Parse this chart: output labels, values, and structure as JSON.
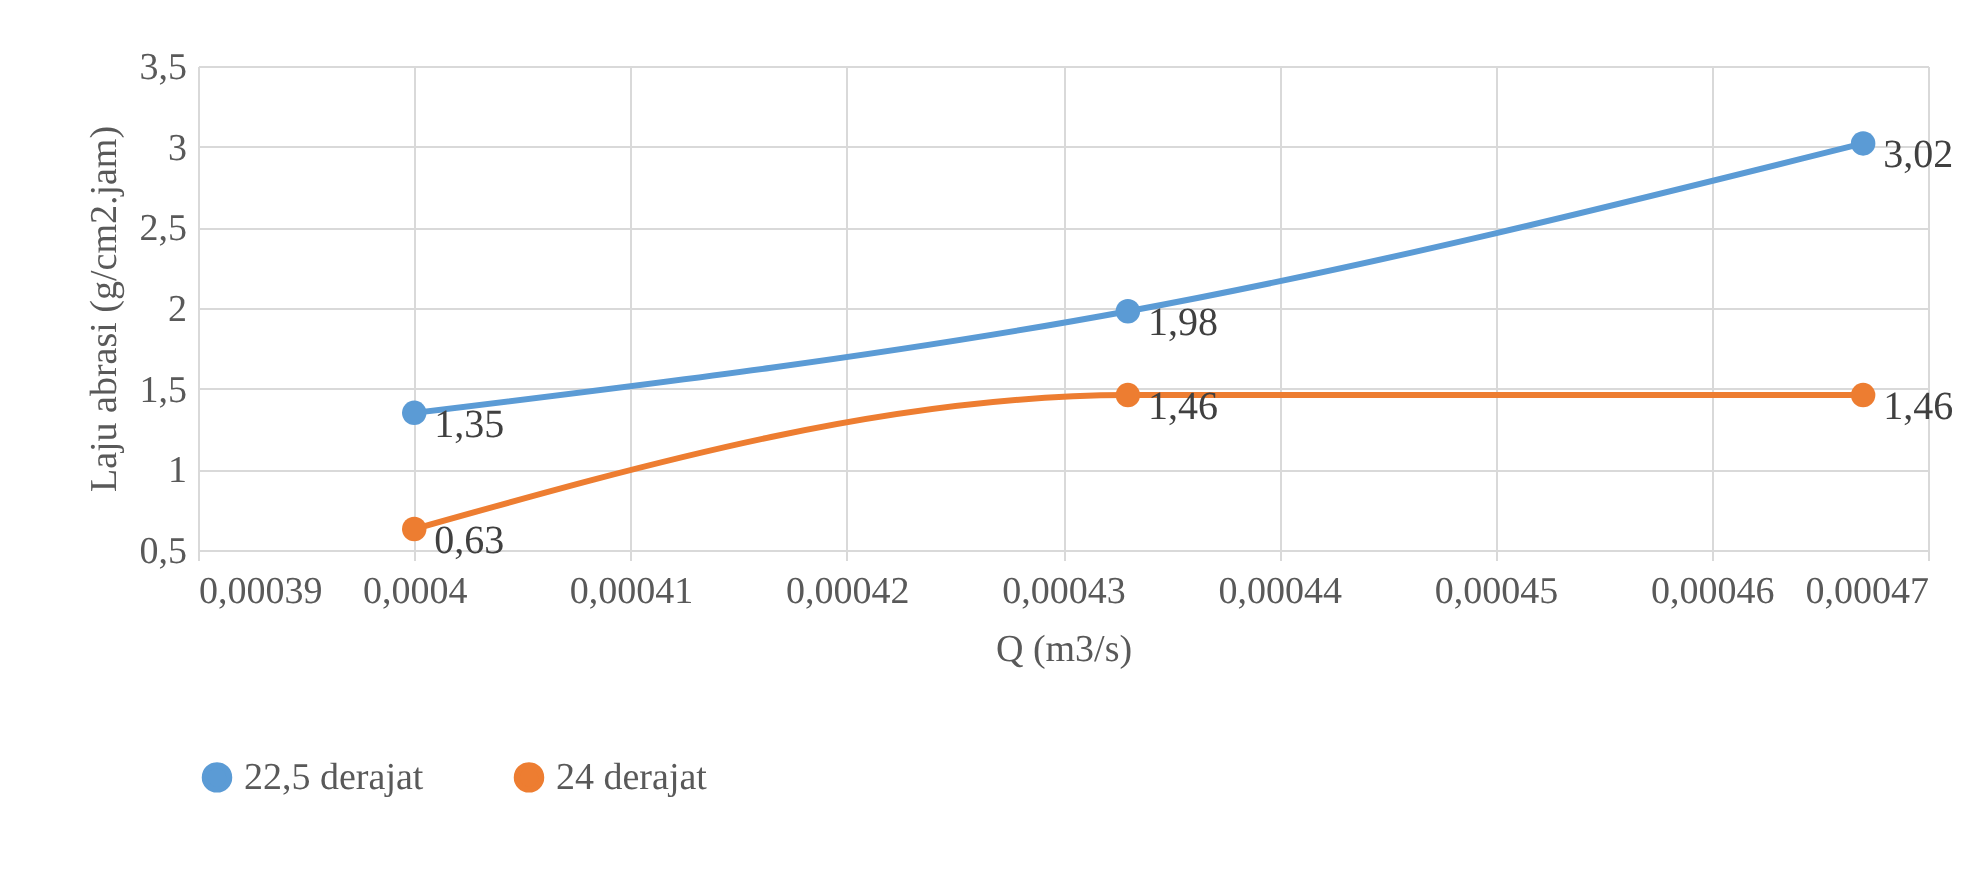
{
  "chart_data": {
    "type": "line",
    "xlabel": "Q (m3/s)",
    "ylabel": "Laju abrasi (g/cm2.jam)",
    "x": [
      0.0004,
      0.000433,
      0.000467
    ],
    "series": [
      {
        "name": "22,5 derajat",
        "color": "#5b9bd5",
        "values": [
          1.35,
          1.98,
          3.02
        ],
        "value_labels": [
          "1,35",
          "1,98",
          "3,02"
        ]
      },
      {
        "name": "24 derajat",
        "color": "#ed7d31",
        "values": [
          0.63,
          1.46,
          1.46
        ],
        "value_labels": [
          "0,63",
          "1,46",
          "1,46"
        ]
      }
    ],
    "xlim": [
      0.00039,
      0.00047
    ],
    "xticks": [
      {
        "value": 0.00039,
        "label": "0,00039"
      },
      {
        "value": 0.0004,
        "label": "0,0004"
      },
      {
        "value": 0.00041,
        "label": "0,00041"
      },
      {
        "value": 0.00042,
        "label": "0,00042"
      },
      {
        "value": 0.00043,
        "label": "0,00043"
      },
      {
        "value": 0.00044,
        "label": "0,00044"
      },
      {
        "value": 0.00045,
        "label": "0,00045"
      },
      {
        "value": 0.00046,
        "label": "0,00046"
      },
      {
        "value": 0.00047,
        "label": "0,00047"
      }
    ],
    "ylim": [
      0.5,
      3.5
    ],
    "yticks": [
      {
        "value": 0.5,
        "label": "0,5"
      },
      1,
      {
        "value": 1.5,
        "label": "1,5"
      },
      2,
      {
        "value": 2.5,
        "label": "2,5"
      },
      3,
      {
        "value": 3.5,
        "label": "3,5"
      }
    ],
    "grid": true,
    "legend": "bottom",
    "marker": "circle",
    "line_style": "solid"
  }
}
